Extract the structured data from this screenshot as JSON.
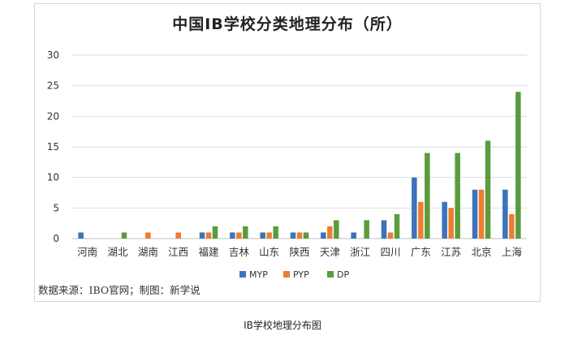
{
  "caption": "IB学校地理分布图",
  "chart_data": {
    "type": "bar",
    "title": "中国IB学校分类地理分布（所）",
    "source": "数据来源：IBO官网；制图：新学说",
    "categories": [
      "河南",
      "湖北",
      "湖南",
      "江西",
      "福建",
      "吉林",
      "山东",
      "陕西",
      "天津",
      "浙江",
      "四川",
      "广东",
      "江苏",
      "北京",
      "上海"
    ],
    "series": [
      {
        "name": "MYP",
        "color": "#3d73b9",
        "values": [
          1,
          0,
          0,
          0,
          1,
          1,
          1,
          1,
          1,
          1,
          3,
          10,
          6,
          8,
          8
        ]
      },
      {
        "name": "PYP",
        "color": "#ed7d31",
        "values": [
          0,
          0,
          1,
          1,
          1,
          1,
          1,
          1,
          2,
          0,
          1,
          6,
          5,
          8,
          4
        ]
      },
      {
        "name": "DP",
        "color": "#5b9b3c",
        "values": [
          0,
          1,
          0,
          0,
          2,
          2,
          2,
          1,
          3,
          3,
          4,
          14,
          14,
          16,
          24
        ]
      }
    ],
    "ylim": [
      0,
      30
    ],
    "yticks": [
      0,
      5,
      10,
      15,
      20,
      25,
      30
    ],
    "grid": true,
    "legend": "bottom"
  }
}
